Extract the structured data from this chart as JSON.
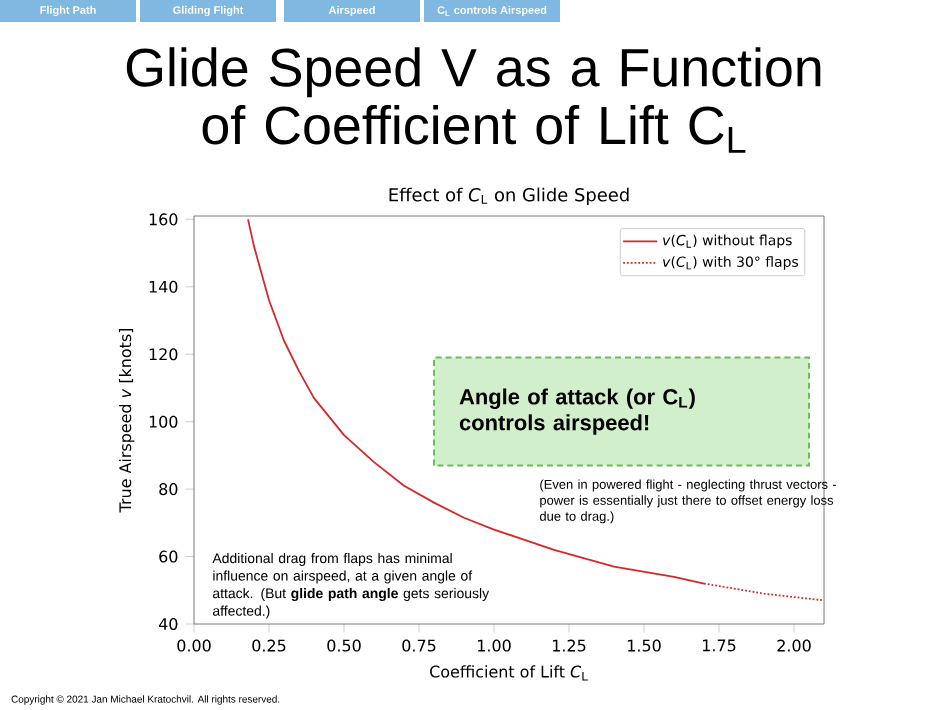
{
  "chart_data": {
    "type": "line",
    "title": "Glide Speed V as a Function of Coefficient of Lift C$_{L}$",
    "subtitle": "Effect of *C*$_{L}$ on Glide Speed",
    "xlabel": "Coefficient of Lift  *C*$_{L}$",
    "ylabel": "True Airspeed *v*  [knots]",
    "series": [
      {
        "name": "*v*(*C*$_{L}$) without flaps",
        "color": "#d62728",
        "line_style": "solid",
        "x": [
          0.18,
          0.2,
          0.25,
          0.3,
          0.35,
          0.4,
          0.5,
          0.6,
          0.7,
          0.8,
          0.9,
          1.0,
          1.2,
          1.4,
          1.6,
          1.7
        ],
        "values": [
          160,
          152,
          136,
          124,
          115,
          107,
          96,
          88,
          81,
          76,
          71.5,
          68,
          62,
          57,
          54,
          52
        ]
      },
      {
        "name": "*v*(*C*$_{L}$) with 30° flaps",
        "color": "#d62728",
        "line_style": "dotted",
        "x": [
          1.7,
          1.8,
          1.9,
          2.0,
          2.1
        ],
        "values": [
          52,
          50.5,
          49,
          48,
          47
        ]
      }
    ],
    "xlim": [
      0,
      2.1
    ],
    "ylim": [
      40,
      161
    ],
    "xticks": [
      {
        "value": 0,
        "label": "0.00"
      },
      0.25,
      {
        "value": 0.5,
        "label": "0.50"
      },
      0.75,
      {
        "value": 1,
        "label": "1.00"
      },
      1.25,
      {
        "value": 1.5,
        "label": "1.50"
      },
      1.75,
      {
        "value": 2,
        "label": "2.00"
      }
    ],
    "yticks": [
      40,
      60,
      80,
      100,
      120,
      140,
      160
    ],
    "legend": "top right",
    "grid": false,
    "annotations": [
      "Flight Path",
      "Gliding Flight",
      "Airspeed",
      "C$_{L}$ controls Airspeed",
      "Angle of attack (or C$_{L}$) controls airspeed!",
      "(Even in powered flight - neglecting thrust vectors - power is essentially just there to offset energy loss due to drag.)",
      "Additional drag from flaps has minimal influence on airspeed, at a given angle of attack. (But **glide path angle** gets seriously affected.)",
      "Copyright © 2021 Jan Michael Kratochvil. All rights reserved."
    ]
  }
}
